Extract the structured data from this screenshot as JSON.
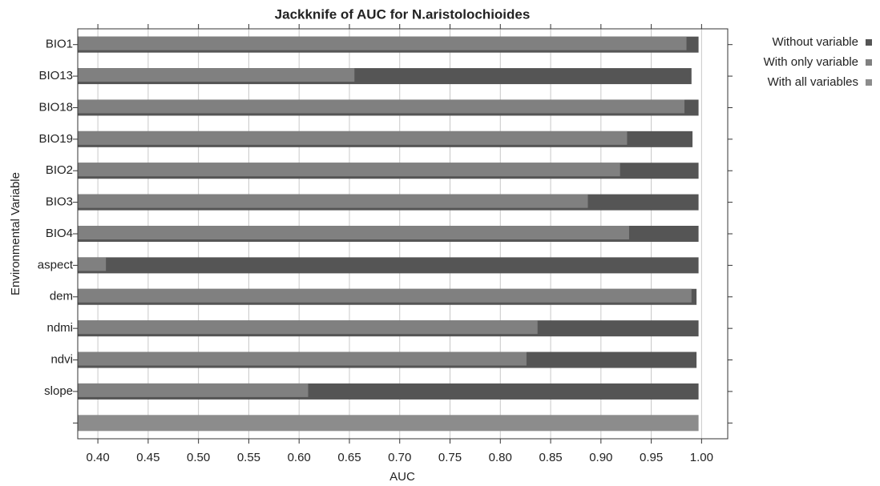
{
  "chart_data": {
    "type": "bar",
    "orientation": "horizontal",
    "title": "Jackknife of AUC for N.aristolochioides",
    "x_label": "AUC",
    "y_label": "Environmental Variable",
    "categories": [
      "BIO1",
      "BIO13",
      "BIO18",
      "BIO19",
      "BIO2",
      "BIO3",
      "BIO4",
      "aspect",
      "dem",
      "ndmi",
      "ndvi",
      "slope",
      null
    ],
    "series": [
      {
        "name": "Without variable",
        "color": "#555555",
        "values": [
          0.997,
          0.99,
          0.997,
          0.991,
          0.997,
          0.997,
          0.997,
          0.997,
          0.995,
          0.997,
          0.995,
          0.997,
          null
        ]
      },
      {
        "name": "With only variable",
        "color": "#808080",
        "values": [
          0.985,
          0.655,
          0.983,
          0.926,
          0.919,
          0.887,
          0.928,
          0.408,
          0.99,
          0.837,
          0.826,
          0.609,
          null
        ]
      },
      {
        "name": "With all variables",
        "color": "#8c8c8c",
        "values": [
          null,
          null,
          null,
          null,
          null,
          null,
          null,
          null,
          null,
          null,
          null,
          null,
          0.997
        ]
      }
    ],
    "xlim": [
      0.38,
      1.026
    ],
    "xticks": [
      {
        "value": 0.4,
        "label": "0.40"
      },
      0.45,
      {
        "value": 0.5,
        "label": "0.50"
      },
      0.55,
      {
        "value": 0.6,
        "label": "0.60"
      },
      0.65,
      {
        "value": 0.7,
        "label": "0.70"
      },
      0.75,
      {
        "value": 0.8,
        "label": "0.80"
      },
      0.85,
      {
        "value": 0.9,
        "label": "0.90"
      },
      0.95,
      {
        "value": 1.0,
        "label": "1.00"
      }
    ],
    "grid": true,
    "legend": "top-right"
  }
}
